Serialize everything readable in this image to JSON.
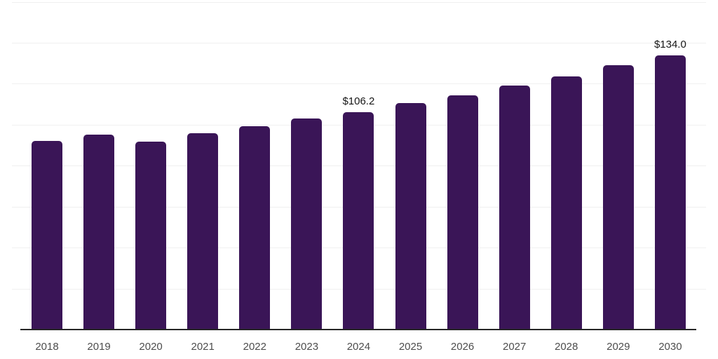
{
  "chart_data": {
    "type": "bar",
    "title": "",
    "xlabel": "",
    "ylabel": "",
    "categories": [
      "2018",
      "2019",
      "2020",
      "2021",
      "2022",
      "2023",
      "2024",
      "2025",
      "2026",
      "2027",
      "2028",
      "2029",
      "2030"
    ],
    "values": [
      92.0,
      95.3,
      91.7,
      95.8,
      99.1,
      103.0,
      106.2,
      110.4,
      114.3,
      119.2,
      123.5,
      129.1,
      134.0
    ],
    "data_labels": {
      "2024": "$106.2",
      "2030": "$134.0"
    },
    "ylim": [
      0,
      160
    ],
    "gridline_step": 20,
    "grid": true,
    "legend_position": "none",
    "colors": {
      "bar": "#3a1557",
      "gridline": "#f0f0f0",
      "axis_line": "#262626",
      "tick_label": "#4d4d4d",
      "data_label": "#161616"
    }
  }
}
